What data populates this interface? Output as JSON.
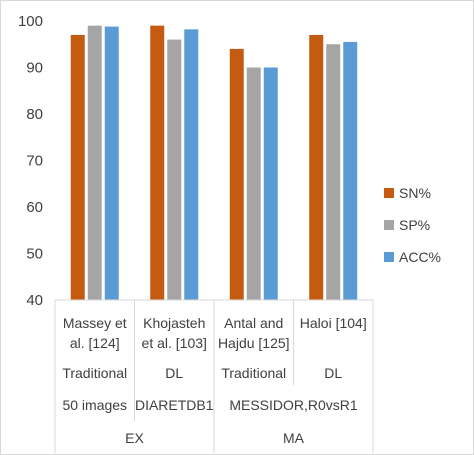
{
  "chart_data": {
    "type": "bar",
    "categories": [
      {
        "name_lines": [
          "Massey et",
          "al. [124]"
        ],
        "method": "Traditional"
      },
      {
        "name_lines": [
          "Khojasteh",
          "et al. [103]"
        ],
        "method": "DL"
      },
      {
        "name_lines": [
          "Antal and",
          "Hajdu [125]"
        ],
        "method": "Traditional"
      },
      {
        "name_lines": [
          "Haloi [104]"
        ],
        "method": "DL"
      }
    ],
    "datasets": [
      {
        "label": "50 images",
        "span": [
          0,
          0
        ]
      },
      {
        "label": "DIARETDB1",
        "span": [
          1,
          1
        ]
      },
      {
        "label": "MESSIDOR,R0vsR1",
        "span": [
          2,
          3
        ]
      }
    ],
    "groups": [
      {
        "label": "EX",
        "span": [
          0,
          1
        ]
      },
      {
        "label": "MA",
        "span": [
          2,
          3
        ]
      }
    ],
    "series": [
      {
        "name": "SN%",
        "color": "#c55a11",
        "values": [
          97,
          99,
          94,
          97
        ]
      },
      {
        "name": "SP%",
        "color": "#a5a5a5",
        "values": [
          99,
          96,
          90,
          95
        ]
      },
      {
        "name": "ACC%",
        "color": "#5b9bd5",
        "values": [
          98.8,
          98.2,
          90,
          95.5
        ]
      }
    ],
    "ylim": [
      40,
      100
    ],
    "yticks": [
      40,
      50,
      60,
      70,
      80,
      90,
      100
    ],
    "grid": false,
    "legend_position": "right",
    "title": "",
    "xlabel": "",
    "ylabel": ""
  }
}
